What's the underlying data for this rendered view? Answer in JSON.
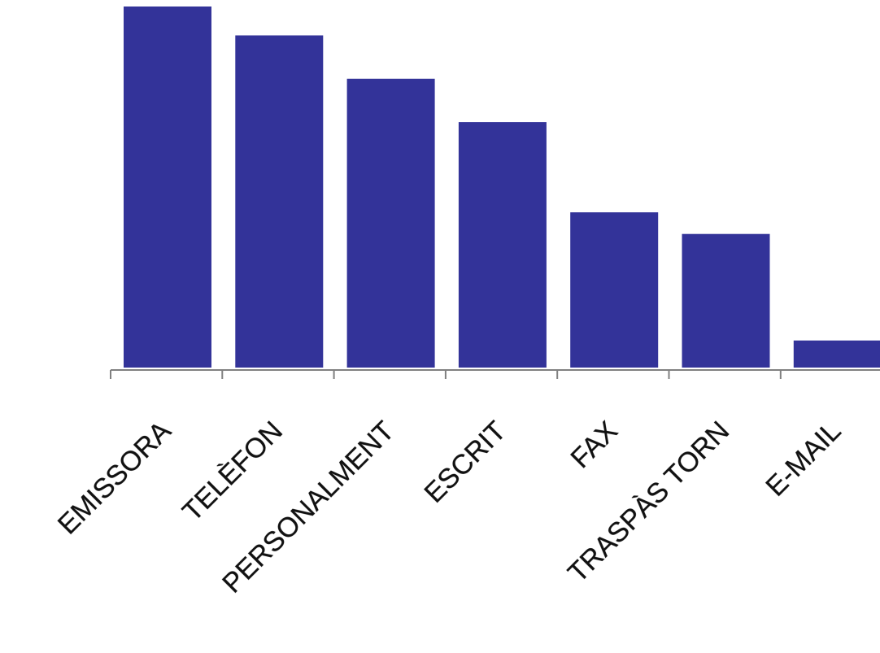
{
  "chart_data": {
    "type": "bar",
    "categories": [
      "EMISSORA",
      "TELÈFON",
      "PERSONALMENT",
      "ESCRIT",
      "FAX",
      "TRASPÀS TORN",
      "E-MAIL"
    ],
    "values": [
      100,
      92,
      80,
      68,
      43,
      37,
      7.5
    ],
    "ylim": [
      0,
      100
    ],
    "title": "",
    "xlabel": "",
    "ylabel": "",
    "grid": false,
    "legend": "none",
    "bar_color": "#333399",
    "axis_color": "#808080"
  }
}
